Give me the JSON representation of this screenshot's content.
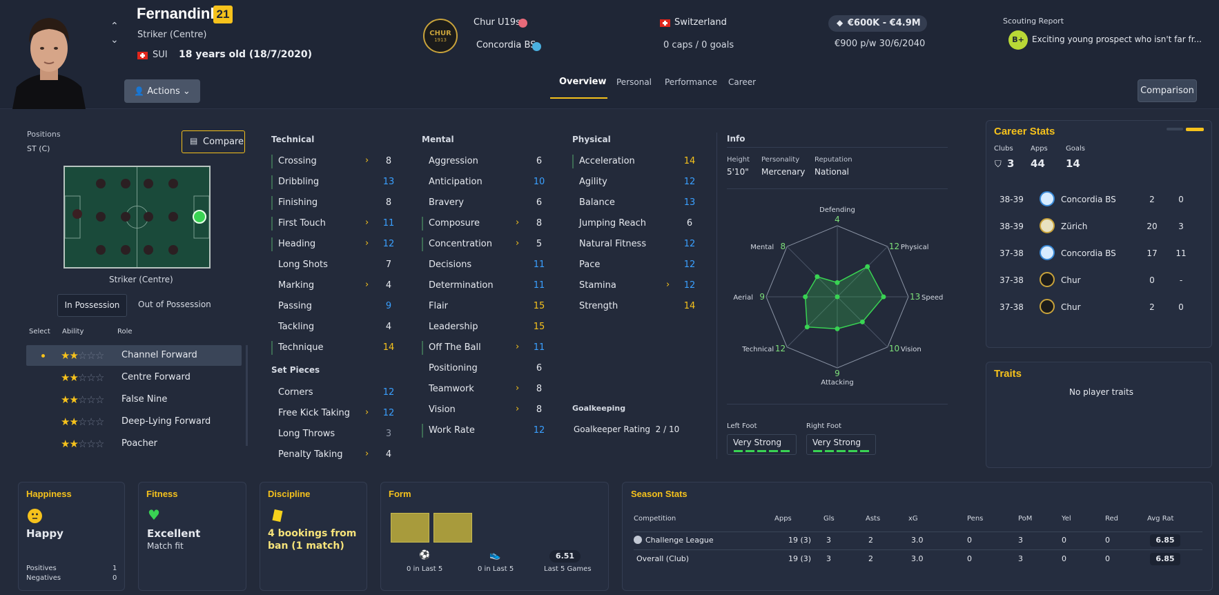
{
  "player": {
    "name": "Fernandinho",
    "rating": "21",
    "position": "Striker (Centre)",
    "nationality": "SUI",
    "age": "18 years old (18/7/2020)"
  },
  "actions_label": "Actions",
  "clubs": {
    "club1": "Chur U19s",
    "club2": "Concordia BS",
    "badge_text": "CHUR",
    "badge_year": "1913"
  },
  "national": {
    "country": "Switzerland",
    "caps": "0 caps / 0 goals"
  },
  "value": {
    "range": "€600K - €4.9M",
    "wage": "€900 p/w 30/6/2040"
  },
  "scouting": {
    "label": "Scouting Report",
    "grade": "B+",
    "text": "Exciting young prospect who isn't far fr..."
  },
  "tabs": [
    "Overview",
    "Personal",
    "Performance",
    "Career"
  ],
  "comparison_label": "Comparison",
  "positions_panel": {
    "label": "Positions",
    "value": "ST (C)",
    "compare": "Compare",
    "pitch_caption": "Striker (Centre)",
    "possession_tabs": [
      "In Possession",
      "Out of Possession"
    ],
    "col_headers": [
      "Select",
      "Ability",
      "Role"
    ],
    "roles": [
      {
        "name": "Channel Forward",
        "stars": 2
      },
      {
        "name": "Centre Forward",
        "stars": 2
      },
      {
        "name": "False Nine",
        "stars": 2
      },
      {
        "name": "Deep-Lying Forward",
        "stars": 2
      },
      {
        "name": "Poacher",
        "stars": 2
      }
    ]
  },
  "technical": {
    "title": "Technical",
    "items": [
      {
        "name": "Crossing",
        "value": "8"
      },
      {
        "name": "Dribbling",
        "value": "13"
      },
      {
        "name": "Finishing",
        "value": "8"
      },
      {
        "name": "First Touch",
        "value": "11"
      },
      {
        "name": "Heading",
        "value": "12"
      },
      {
        "name": "Long Shots",
        "value": "7"
      },
      {
        "name": "Marking",
        "value": "4"
      },
      {
        "name": "Passing",
        "value": "9"
      },
      {
        "name": "Tackling",
        "value": "4"
      },
      {
        "name": "Technique",
        "value": "14"
      }
    ]
  },
  "set_pieces": {
    "title": "Set Pieces",
    "items": [
      {
        "name": "Corners",
        "value": "12"
      },
      {
        "name": "Free Kick Taking",
        "value": "12"
      },
      {
        "name": "Long Throws",
        "value": "3"
      },
      {
        "name": "Penalty Taking",
        "value": "4"
      }
    ]
  },
  "mental": {
    "title": "Mental",
    "items": [
      {
        "name": "Aggression",
        "value": "6"
      },
      {
        "name": "Anticipation",
        "value": "10"
      },
      {
        "name": "Bravery",
        "value": "6"
      },
      {
        "name": "Composure",
        "value": "8"
      },
      {
        "name": "Concentration",
        "value": "5"
      },
      {
        "name": "Decisions",
        "value": "11"
      },
      {
        "name": "Determination",
        "value": "11"
      },
      {
        "name": "Flair",
        "value": "15"
      },
      {
        "name": "Leadership",
        "value": "15"
      },
      {
        "name": "Off The Ball",
        "value": "11"
      },
      {
        "name": "Positioning",
        "value": "6"
      },
      {
        "name": "Teamwork",
        "value": "8"
      },
      {
        "name": "Vision",
        "value": "8"
      },
      {
        "name": "Work Rate",
        "value": "12"
      }
    ]
  },
  "physical": {
    "title": "Physical",
    "items": [
      {
        "name": "Acceleration",
        "value": "14"
      },
      {
        "name": "Agility",
        "value": "12"
      },
      {
        "name": "Balance",
        "value": "13"
      },
      {
        "name": "Jumping Reach",
        "value": "6"
      },
      {
        "name": "Natural Fitness",
        "value": "12"
      },
      {
        "name": "Pace",
        "value": "12"
      },
      {
        "name": "Stamina",
        "value": "12"
      },
      {
        "name": "Strength",
        "value": "14"
      }
    ]
  },
  "goalkeeping": {
    "title": "Goalkeeping",
    "rating": "Goalkeeper Rating  2 / 10"
  },
  "info": {
    "title": "Info",
    "height_label": "Height",
    "height": "5'10\"",
    "personality_label": "Personality",
    "personality": "Mercenary",
    "reputation_label": "Reputation",
    "reputation": "National",
    "left_foot_label": "Left Foot",
    "left_foot": "Very Strong",
    "right_foot_label": "Right Foot",
    "right_foot": "Very Strong",
    "radar": [
      {
        "label": "Defending",
        "value": "4"
      },
      {
        "label": "Physical",
        "value": "12"
      },
      {
        "label": "Speed",
        "value": "13"
      },
      {
        "label": "Vision",
        "value": "10"
      },
      {
        "label": "Attacking",
        "value": "9"
      },
      {
        "label": "Technical",
        "value": "12"
      },
      {
        "label": "Aerial",
        "value": "9"
      },
      {
        "label": "Mental",
        "value": "8"
      }
    ]
  },
  "career": {
    "title": "Career Stats",
    "clubs_label": "Clubs",
    "clubs": "3",
    "apps_label": "Apps",
    "apps": "44",
    "goals_label": "Goals",
    "goals": "14",
    "rows": [
      {
        "season": "38-39",
        "club": "Concordia BS",
        "apps": "2",
        "goals": "0"
      },
      {
        "season": "38-39",
        "club": "Zürich",
        "apps": "20",
        "goals": "3"
      },
      {
        "season": "37-38",
        "club": "Concordia BS",
        "apps": "17",
        "goals": "11"
      },
      {
        "season": "37-38",
        "club": "Chur",
        "apps": "0",
        "goals": "-"
      },
      {
        "season": "37-38",
        "club": "Chur",
        "apps": "2",
        "goals": "0"
      }
    ]
  },
  "traits": {
    "title": "Traits",
    "text": "No player traits"
  },
  "happiness": {
    "title": "Happiness",
    "status": "Happy",
    "positives_label": "Positives",
    "positives": "1",
    "negatives_label": "Negatives",
    "negatives": "0"
  },
  "fitness": {
    "title": "Fitness",
    "status": "Excellent",
    "sub": "Match fit"
  },
  "discipline": {
    "title": "Discipline",
    "text": "4 bookings from ban (1 match)"
  },
  "form": {
    "title": "Form",
    "goals": "0 in Last 5",
    "assists": "0 in Last 5",
    "avg": "6.51",
    "avg_label": "Last 5 Games"
  },
  "season_stats": {
    "title": "Season Stats",
    "headers": [
      "Competition",
      "Apps",
      "Gls",
      "Asts",
      "xG",
      "Pens",
      "PoM",
      "Yel",
      "Red",
      "Avg Rat"
    ],
    "rows": [
      [
        "Challenge League",
        "19 (3)",
        "3",
        "2",
        "3.0",
        "0",
        "3",
        "0",
        "0",
        "6.85"
      ],
      [
        "Overall (Club)",
        "19 (3)",
        "3",
        "2",
        "3.0",
        "0",
        "3",
        "0",
        "0",
        "6.85"
      ]
    ]
  },
  "colors": {
    "accent": "#f6c21c",
    "blue": "#3aa0ff",
    "green": "#39d353",
    "bg": "#232a3a"
  }
}
